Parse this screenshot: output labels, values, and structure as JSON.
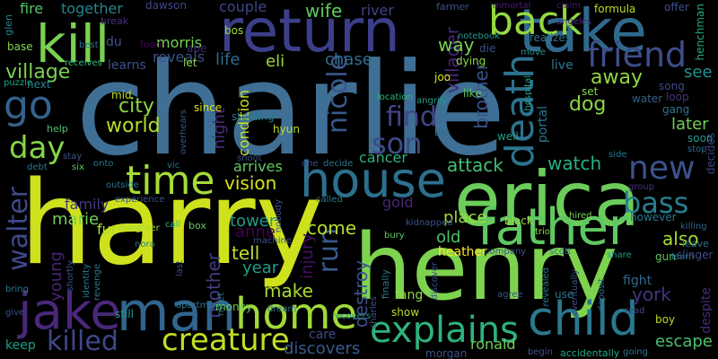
{
  "words": [
    {
      "text": "charlie",
      "color": "#3f6f94"
    },
    {
      "text": "harry",
      "color": "#cfe11c"
    },
    {
      "text": "henry",
      "color": "#7ed34e"
    },
    {
      "text": "erica",
      "color": "#6ccd5a"
    },
    {
      "text": "return",
      "color": "#3b3f8a"
    },
    {
      "text": "kill",
      "color": "#7ad151"
    },
    {
      "text": "take",
      "color": "#2f6a8d"
    },
    {
      "text": "father",
      "color": "#5fc863"
    },
    {
      "text": "man",
      "color": "#31658e"
    },
    {
      "text": "jake",
      "color": "#482878"
    },
    {
      "text": "house",
      "color": "#2d708e"
    },
    {
      "text": "home",
      "color": "#a0da39"
    },
    {
      "text": "child",
      "color": "#2a788e"
    },
    {
      "text": "time",
      "color": "#a5db36"
    },
    {
      "text": "back",
      "color": "#95d840"
    },
    {
      "text": "friend",
      "color": "#3d4d8a"
    },
    {
      "text": "death",
      "color": "#2c738e"
    },
    {
      "text": "explains",
      "color": "#2db27d"
    },
    {
      "text": "creature",
      "color": "#c2df23"
    },
    {
      "text": "son",
      "color": "#3e4a89"
    },
    {
      "text": "go",
      "color": "#33628d"
    },
    {
      "text": "new",
      "color": "#3b528b"
    },
    {
      "text": "bass",
      "color": "#277f8e"
    },
    {
      "text": "day",
      "color": "#86d549"
    },
    {
      "text": "walter",
      "color": "#3e4989"
    },
    {
      "text": "nicole",
      "color": "#38588c"
    },
    {
      "text": "find",
      "color": "#414487"
    },
    {
      "text": "killed",
      "color": "#3f4788"
    },
    {
      "text": "village",
      "color": "#7ad151"
    },
    {
      "text": "run",
      "color": "#375b8d"
    },
    {
      "text": "world",
      "color": "#b5de2b"
    },
    {
      "text": "city",
      "color": "#8bd646"
    },
    {
      "text": "vision",
      "color": "#d8e219"
    },
    {
      "text": "attack",
      "color": "#44bf70"
    },
    {
      "text": "watch",
      "color": "#2ab07f"
    },
    {
      "text": "tell",
      "color": "#bddf26"
    },
    {
      "text": "come",
      "color": "#b5de2b"
    },
    {
      "text": "make",
      "color": "#a8db34"
    },
    {
      "text": "year",
      "color": "#1fa088"
    },
    {
      "text": "anne",
      "color": "#440154"
    },
    {
      "text": "mother",
      "color": "#433d84"
    },
    {
      "text": "night",
      "color": "#472d7b"
    },
    {
      "text": "injury",
      "color": "#471063"
    },
    {
      "text": "destroy",
      "color": "#3b528b"
    },
    {
      "text": "york",
      "color": "#46337e"
    },
    {
      "text": "also",
      "color": "#a5db36"
    },
    {
      "text": "escape",
      "color": "#4ac16d"
    },
    {
      "text": "discovers",
      "color": "#375b8d"
    },
    {
      "text": "ronald",
      "color": "#6ece58"
    },
    {
      "text": "later",
      "color": "#70cf57"
    },
    {
      "text": "dog",
      "color": "#8bd646"
    },
    {
      "text": "away",
      "color": "#8fd744"
    },
    {
      "text": "place",
      "color": "#9fda3a"
    },
    {
      "text": "old",
      "color": "#4ac16d"
    },
    {
      "text": "brother",
      "color": "#3b528b"
    },
    {
      "text": "villager",
      "color": "#472878"
    },
    {
      "text": "chase",
      "color": "#2e6f8e"
    },
    {
      "text": "life",
      "color": "#31688e"
    },
    {
      "text": "eli",
      "color": "#9bd93c"
    },
    {
      "text": "wife",
      "color": "#5ec962"
    },
    {
      "text": "morris",
      "color": "#7ad151"
    },
    {
      "text": "reveals",
      "color": "#3b528b"
    },
    {
      "text": "fire",
      "color": "#54c568"
    },
    {
      "text": "together",
      "color": "#25848e"
    },
    {
      "text": "couple",
      "color": "#404688"
    },
    {
      "text": "river",
      "color": "#414487"
    },
    {
      "text": "way",
      "color": "#7ad151"
    },
    {
      "text": "see",
      "color": "#20928c"
    },
    {
      "text": "tower",
      "color": "#1f9a8a"
    },
    {
      "text": "family",
      "color": "#453781"
    },
    {
      "text": "marie",
      "color": "#70cf57"
    },
    {
      "text": "young",
      "color": "#482475"
    },
    {
      "text": "fur",
      "color": "#ade028"
    },
    {
      "text": "arrives",
      "color": "#5ec962"
    },
    {
      "text": "condition",
      "color": "#c8e020"
    },
    {
      "text": "cancer",
      "color": "#2db27d"
    },
    {
      "text": "gold",
      "color": "#482475"
    },
    {
      "text": "heather",
      "color": "#fde725"
    },
    {
      "text": "care",
      "color": "#3e4a89"
    },
    {
      "text": "fang",
      "color": "#8fd744"
    },
    {
      "text": "keep",
      "color": "#1f9e89"
    },
    {
      "text": "show",
      "color": "#b5de2b"
    },
    {
      "text": "fight",
      "color": "#31688e"
    },
    {
      "text": "gun",
      "color": "#5ec962"
    },
    {
      "text": "slinger",
      "color": "#3e4a89"
    },
    {
      "text": "leave",
      "color": "#2c728e"
    },
    {
      "text": "learns",
      "color": "#3b528b"
    },
    {
      "text": "next",
      "color": "#25848e"
    },
    {
      "text": "mid",
      "color": "#b8de29"
    },
    {
      "text": "since",
      "color": "#dde318"
    },
    {
      "text": "stealing",
      "color": "#2a788e"
    },
    {
      "text": "hyun",
      "color": "#bddf26"
    },
    {
      "text": "dawson",
      "color": "#404688"
    },
    {
      "text": "bos",
      "color": "#a0da39"
    },
    {
      "text": "let",
      "color": "#8bd646"
    },
    {
      "text": "du",
      "color": "#3b528b"
    },
    {
      "text": "food",
      "color": "#440154"
    },
    {
      "text": "abe",
      "color": "#482878"
    },
    {
      "text": "help",
      "color": "#4ac16d"
    },
    {
      "text": "base",
      "color": "#84d44b"
    },
    {
      "text": "break",
      "color": "#46327e"
    },
    {
      "text": "best",
      "color": "#2c728e"
    },
    {
      "text": "puzzle",
      "color": "#20a486"
    },
    {
      "text": "glen",
      "color": "#24868e"
    },
    {
      "text": "receives",
      "color": "#35b779"
    },
    {
      "text": "die",
      "color": "#3b528b"
    },
    {
      "text": "dying",
      "color": "#8bd646"
    },
    {
      "text": "joo",
      "color": "#dde318"
    },
    {
      "text": "like",
      "color": "#5ec962"
    },
    {
      "text": "well",
      "color": "#1fa188"
    },
    {
      "text": "portal",
      "color": "#2a788e"
    },
    {
      "text": "notebook",
      "color": "#1f9a8a"
    },
    {
      "text": "realizes",
      "color": "#2a788e"
    },
    {
      "text": "formula",
      "color": "#b5de2b"
    },
    {
      "text": "offer",
      "color": "#3b528b"
    },
    {
      "text": "immortal",
      "color": "#481f70"
    },
    {
      "text": "claim",
      "color": "#481769"
    },
    {
      "text": "farmer",
      "color": "#3b528b"
    },
    {
      "text": "henchman",
      "color": "#22a884"
    },
    {
      "text": "angeles",
      "color": "#46327e"
    },
    {
      "text": "move",
      "color": "#21918c"
    },
    {
      "text": "live",
      "color": "#2a788e"
    },
    {
      "text": "set",
      "color": "#86d549"
    },
    {
      "text": "song",
      "color": "#3e4989"
    },
    {
      "text": "water",
      "color": "#355f8d"
    },
    {
      "text": "loop",
      "color": "#46337e"
    },
    {
      "text": "gang",
      "color": "#2a788e"
    },
    {
      "text": "hospital",
      "color": "#1fa088"
    },
    {
      "text": "location",
      "color": "#32b67a"
    },
    {
      "text": "angrily",
      "color": "#1f9e89"
    },
    {
      "text": "bar",
      "color": "#2e6e8e"
    },
    {
      "text": "soon",
      "color": "#1f9a8a"
    },
    {
      "text": "stop",
      "color": "#2d708e"
    },
    {
      "text": "side",
      "color": "#2a788e"
    },
    {
      "text": "decides",
      "color": "#414487"
    },
    {
      "text": "group",
      "color": "#46337e"
    },
    {
      "text": "however",
      "color": "#2a788e"
    },
    {
      "text": "killing",
      "color": "#34618d"
    },
    {
      "text": "learn",
      "color": "#2d708e"
    },
    {
      "text": "despite",
      "color": "#472c7a"
    },
    {
      "text": "hired",
      "color": "#7ad151"
    },
    {
      "text": "trio",
      "color": "#8bd646"
    },
    {
      "text": "black",
      "color": "#9bd93c"
    },
    {
      "text": "kidnapped",
      "color": "#3b528b"
    },
    {
      "text": "bury",
      "color": "#5ec962"
    },
    {
      "text": "company",
      "color": "#3b528b"
    },
    {
      "text": "scott",
      "color": "#2a788e"
    },
    {
      "text": "share",
      "color": "#1f9a8a"
    },
    {
      "text": "revealed",
      "color": "#2a788e"
    },
    {
      "text": "eventually",
      "color": "#3b528b"
    },
    {
      "text": "use",
      "color": "#2a788e"
    },
    {
      "text": "agree",
      "color": "#3b528b"
    },
    {
      "text": "deposit",
      "color": "#2a788e"
    },
    {
      "text": "discover",
      "color": "#3b528b"
    },
    {
      "text": "read",
      "color": "#3e4a89"
    },
    {
      "text": "boy",
      "color": "#b8de29"
    },
    {
      "text": "going",
      "color": "#2a788e"
    },
    {
      "text": "accidentally",
      "color": "#22a884"
    },
    {
      "text": "begin",
      "color": "#3b528b"
    },
    {
      "text": "morgan",
      "color": "#3b528b"
    },
    {
      "text": "recovers",
      "color": "#1f9a8a"
    },
    {
      "text": "charles",
      "color": "#3b528b"
    },
    {
      "text": "finally",
      "color": "#2a788e"
    },
    {
      "text": "meet",
      "color": "#2a788e"
    },
    {
      "text": "dream",
      "color": "#2a788e"
    },
    {
      "text": "money",
      "color": "#6ece58"
    },
    {
      "text": "nobody",
      "color": "#3b528b"
    },
    {
      "text": "called",
      "color": "#2a788e"
    },
    {
      "text": "machine",
      "color": "#3b528b"
    },
    {
      "text": "box",
      "color": "#5ec962"
    },
    {
      "text": "apartment",
      "color": "#2a788e"
    },
    {
      "text": "still",
      "color": "#1f9a8a"
    },
    {
      "text": "last",
      "color": "#3e4a89"
    },
    {
      "text": "nora",
      "color": "#2a788e"
    },
    {
      "text": "daughter",
      "color": "#a0da39"
    },
    {
      "text": "revenge",
      "color": "#2a788e"
    },
    {
      "text": "shortly",
      "color": "#3b528b"
    },
    {
      "text": "identity",
      "color": "#2a788e"
    },
    {
      "text": "bring",
      "color": "#2a788e"
    },
    {
      "text": "give",
      "color": "#3b528b"
    },
    {
      "text": "onto",
      "color": "#2a788e"
    },
    {
      "text": "six",
      "color": "#5ec962"
    },
    {
      "text": "debt",
      "color": "#2a788e"
    },
    {
      "text": "stay",
      "color": "#3b528b"
    },
    {
      "text": "outside",
      "color": "#2a788e"
    },
    {
      "text": "experience",
      "color": "#3b528b"
    },
    {
      "text": "call",
      "color": "#35b779"
    },
    {
      "text": "vic",
      "color": "#2a788e"
    },
    {
      "text": "overhears",
      "color": "#3b528b"
    },
    {
      "text": "one",
      "color": "#3b528b"
    },
    {
      "text": "decide",
      "color": "#2a788e"
    },
    {
      "text": "shoot",
      "color": "#3b528b"
    }
  ]
}
